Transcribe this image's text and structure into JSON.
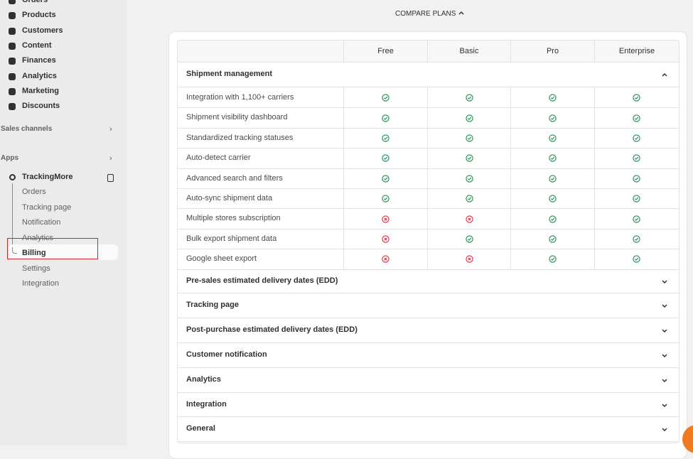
{
  "sidebar": {
    "nav": [
      "Orders",
      "Products",
      "Customers",
      "Content",
      "Finances",
      "Analytics",
      "Marketing",
      "Discounts"
    ],
    "sales_channels": "Sales channels",
    "apps": "Apps",
    "app": {
      "name": "TrackingMore",
      "items": [
        "Orders",
        "Tracking page",
        "Notification",
        "Analytics",
        "Billing",
        "Settings",
        "Integration"
      ],
      "selected": 4
    }
  },
  "compare_plans": "COMPARE PLANS",
  "table": {
    "columns": [
      "Free",
      "Basic",
      "Pro",
      "Enterprise"
    ],
    "section": "Shipment management",
    "rows": [
      {
        "feature": "Integration with 1,100+ carriers",
        "plans": [
          true,
          true,
          true,
          true
        ]
      },
      {
        "feature": "Shipment visibility dashboard",
        "plans": [
          true,
          true,
          true,
          true
        ]
      },
      {
        "feature": "Standardized tracking statuses",
        "plans": [
          true,
          true,
          true,
          true
        ]
      },
      {
        "feature": "Auto-detect carrier",
        "plans": [
          true,
          true,
          true,
          true
        ]
      },
      {
        "feature": "Advanced search and filters",
        "plans": [
          true,
          true,
          true,
          true
        ]
      },
      {
        "feature": "Auto-sync shipment data",
        "plans": [
          true,
          true,
          true,
          true
        ]
      },
      {
        "feature": "Multiple stores subscription",
        "plans": [
          false,
          false,
          true,
          true
        ]
      },
      {
        "feature": "Bulk export shipment data",
        "plans": [
          false,
          true,
          true,
          true
        ]
      },
      {
        "feature": "Google sheet export",
        "plans": [
          false,
          false,
          true,
          true
        ]
      }
    ],
    "collapsed": [
      "Pre-sales estimated delivery dates (EDD)",
      "Tracking page",
      "Post-purchase estimated delivery dates (EDD)",
      "Customer notification",
      "Analytics",
      "Integration",
      "General"
    ]
  }
}
